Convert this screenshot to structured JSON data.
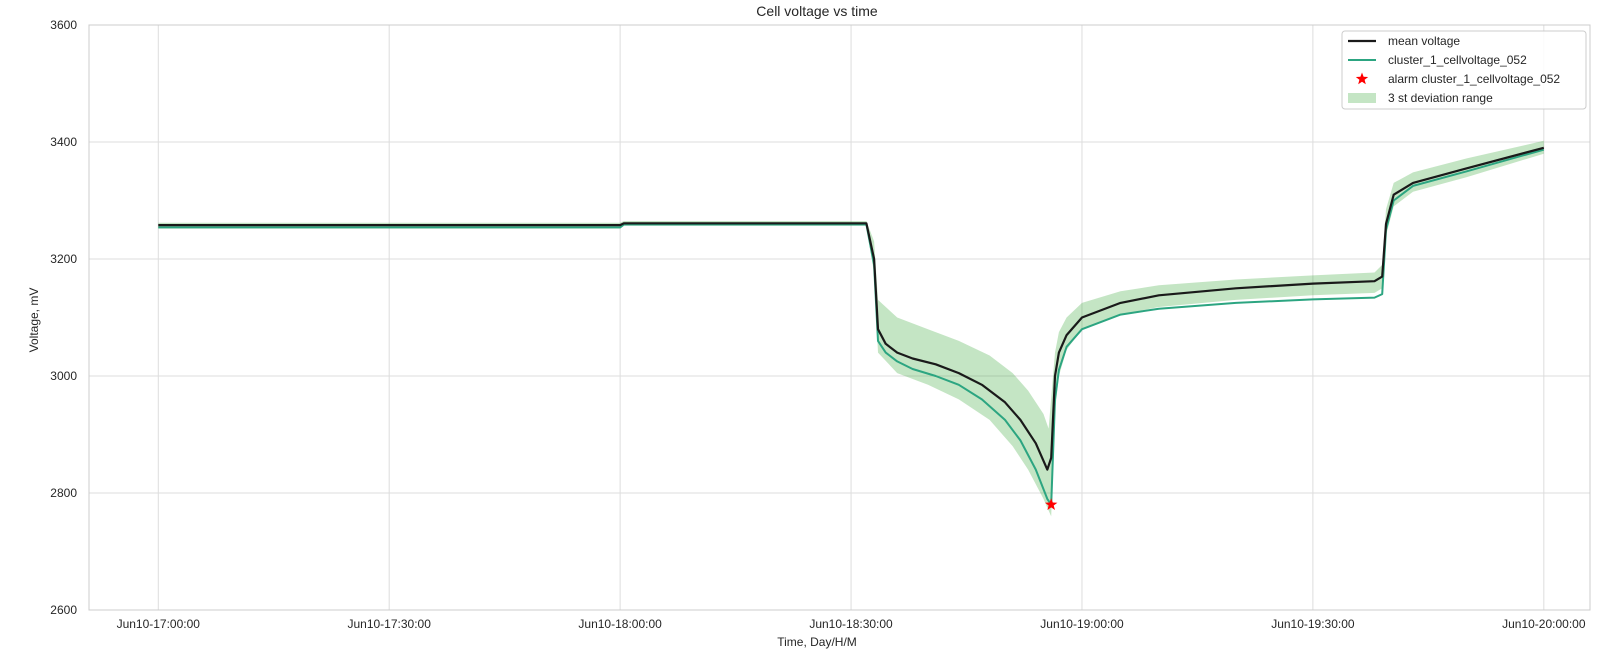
{
  "chart_data": {
    "type": "line",
    "title": "Cell voltage vs time",
    "xlabel": "Time, Day/H/M",
    "ylabel": "Voltage, mV",
    "ylim": [
      2600,
      3600
    ],
    "xlim": [
      "Jun10-16:51:00",
      "Jun10-20:06:00"
    ],
    "x_ticks": [
      "Jun10-17:00:00",
      "Jun10-17:30:00",
      "Jun10-18:00:00",
      "Jun10-18:30:00",
      "Jun10-19:00:00",
      "Jun10-19:30:00",
      "Jun10-20:00:00"
    ],
    "y_ticks": [
      2600,
      2800,
      3000,
      3200,
      3400,
      3600
    ],
    "grid": true,
    "legend_position": "top-right",
    "legend": [
      "mean voltage",
      "cluster_1_cellvoltage_052",
      "alarm cluster_1_cellvoltage_052",
      "3 st deviation range"
    ],
    "colors": {
      "mean": "#1a1a1a",
      "cell": "#2ca581",
      "alarm": "#ff0000",
      "band": "#2ca02c",
      "grid": "#dddddd",
      "axes_edge": "#cccccc"
    },
    "series": [
      {
        "name": "mean voltage",
        "points": [
          [
            "Jun10-17:00:00",
            3258
          ],
          [
            "Jun10-18:00:00",
            3258
          ],
          [
            "Jun10-18:00:30",
            3261
          ],
          [
            "Jun10-18:32:00",
            3261
          ],
          [
            "Jun10-18:33:00",
            3200
          ],
          [
            "Jun10-18:33:30",
            3080
          ],
          [
            "Jun10-18:34:30",
            3055
          ],
          [
            "Jun10-18:36:00",
            3040
          ],
          [
            "Jun10-18:38:00",
            3030
          ],
          [
            "Jun10-18:41:00",
            3020
          ],
          [
            "Jun10-18:44:00",
            3005
          ],
          [
            "Jun10-18:47:00",
            2985
          ],
          [
            "Jun10-18:50:00",
            2955
          ],
          [
            "Jun10-18:52:00",
            2925
          ],
          [
            "Jun10-18:54:00",
            2885
          ],
          [
            "Jun10-18:55:30",
            2840
          ],
          [
            "Jun10-18:56:00",
            2860
          ],
          [
            "Jun10-18:56:30",
            3000
          ],
          [
            "Jun10-18:57:00",
            3040
          ],
          [
            "Jun10-18:58:00",
            3070
          ],
          [
            "Jun10-19:00:00",
            3100
          ],
          [
            "Jun10-19:05:00",
            3125
          ],
          [
            "Jun10-19:10:00",
            3138
          ],
          [
            "Jun10-19:20:00",
            3150
          ],
          [
            "Jun10-19:30:00",
            3158
          ],
          [
            "Jun10-19:38:00",
            3162
          ],
          [
            "Jun10-19:39:00",
            3170
          ],
          [
            "Jun10-19:39:30",
            3260
          ],
          [
            "Jun10-19:40:30",
            3310
          ],
          [
            "Jun10-19:43:00",
            3330
          ],
          [
            "Jun10-19:50:00",
            3355
          ],
          [
            "Jun10-20:00:00",
            3390
          ]
        ]
      },
      {
        "name": "cluster_1_cellvoltage_052",
        "points": [
          [
            "Jun10-17:00:00",
            3254
          ],
          [
            "Jun10-18:00:00",
            3254
          ],
          [
            "Jun10-18:00:30",
            3259
          ],
          [
            "Jun10-18:32:00",
            3259
          ],
          [
            "Jun10-18:33:00",
            3190
          ],
          [
            "Jun10-18:33:30",
            3060
          ],
          [
            "Jun10-18:34:30",
            3040
          ],
          [
            "Jun10-18:36:00",
            3025
          ],
          [
            "Jun10-18:38:00",
            3012
          ],
          [
            "Jun10-18:41:00",
            3000
          ],
          [
            "Jun10-18:44:00",
            2985
          ],
          [
            "Jun10-18:47:00",
            2960
          ],
          [
            "Jun10-18:50:00",
            2925
          ],
          [
            "Jun10-18:52:00",
            2890
          ],
          [
            "Jun10-18:54:00",
            2840
          ],
          [
            "Jun10-18:55:30",
            2790
          ],
          [
            "Jun10-18:56:00",
            2780
          ],
          [
            "Jun10-18:56:30",
            2960
          ],
          [
            "Jun10-18:57:00",
            3010
          ],
          [
            "Jun10-18:58:00",
            3050
          ],
          [
            "Jun10-19:00:00",
            3080
          ],
          [
            "Jun10-19:05:00",
            3105
          ],
          [
            "Jun10-19:10:00",
            3115
          ],
          [
            "Jun10-19:20:00",
            3125
          ],
          [
            "Jun10-19:30:00",
            3131
          ],
          [
            "Jun10-19:38:00",
            3134
          ],
          [
            "Jun10-19:39:00",
            3140
          ],
          [
            "Jun10-19:39:30",
            3250
          ],
          [
            "Jun10-19:40:30",
            3300
          ],
          [
            "Jun10-19:43:00",
            3325
          ],
          [
            "Jun10-19:50:00",
            3350
          ],
          [
            "Jun10-20:00:00",
            3387
          ]
        ]
      }
    ],
    "band": {
      "name": "3 st deviation range",
      "upper": [
        [
          "Jun10-17:00:00",
          3262
        ],
        [
          "Jun10-18:00:00",
          3262
        ],
        [
          "Jun10-18:00:30",
          3265
        ],
        [
          "Jun10-18:32:00",
          3265
        ],
        [
          "Jun10-18:33:00",
          3230
        ],
        [
          "Jun10-18:33:30",
          3130
        ],
        [
          "Jun10-18:36:00",
          3100
        ],
        [
          "Jun10-18:40:00",
          3080
        ],
        [
          "Jun10-18:44:00",
          3060
        ],
        [
          "Jun10-18:48:00",
          3035
        ],
        [
          "Jun10-18:51:00",
          3005
        ],
        [
          "Jun10-18:53:00",
          2975
        ],
        [
          "Jun10-18:55:00",
          2935
        ],
        [
          "Jun10-18:55:40",
          2910
        ],
        [
          "Jun10-18:56:30",
          3040
        ],
        [
          "Jun10-18:57:00",
          3075
        ],
        [
          "Jun10-18:58:00",
          3100
        ],
        [
          "Jun10-19:00:00",
          3125
        ],
        [
          "Jun10-19:05:00",
          3145
        ],
        [
          "Jun10-19:10:00",
          3155
        ],
        [
          "Jun10-19:20:00",
          3165
        ],
        [
          "Jun10-19:30:00",
          3172
        ],
        [
          "Jun10-19:38:00",
          3177
        ],
        [
          "Jun10-19:39:00",
          3190
        ],
        [
          "Jun10-19:39:30",
          3285
        ],
        [
          "Jun10-19:40:30",
          3330
        ],
        [
          "Jun10-19:43:00",
          3348
        ],
        [
          "Jun10-19:50:00",
          3372
        ],
        [
          "Jun10-20:00:00",
          3402
        ]
      ],
      "lower": [
        [
          "Jun10-17:00:00",
          3252
        ],
        [
          "Jun10-18:00:00",
          3252
        ],
        [
          "Jun10-18:00:30",
          3257
        ],
        [
          "Jun10-18:32:00",
          3257
        ],
        [
          "Jun10-18:33:00",
          3175
        ],
        [
          "Jun10-18:33:30",
          3040
        ],
        [
          "Jun10-18:36:00",
          3005
        ],
        [
          "Jun10-18:40:00",
          2985
        ],
        [
          "Jun10-18:44:00",
          2960
        ],
        [
          "Jun10-18:48:00",
          2925
        ],
        [
          "Jun10-18:51:00",
          2880
        ],
        [
          "Jun10-18:53:00",
          2840
        ],
        [
          "Jun10-18:55:00",
          2790
        ],
        [
          "Jun10-18:56:00",
          2760
        ],
        [
          "Jun10-18:56:30",
          2940
        ],
        [
          "Jun10-18:57:00",
          3000
        ],
        [
          "Jun10-18:58:00",
          3045
        ],
        [
          "Jun10-19:00:00",
          3080
        ],
        [
          "Jun10-19:05:00",
          3105
        ],
        [
          "Jun10-19:10:00",
          3118
        ],
        [
          "Jun10-19:20:00",
          3130
        ],
        [
          "Jun10-19:30:00",
          3138
        ],
        [
          "Jun10-19:38:00",
          3142
        ],
        [
          "Jun10-19:39:00",
          3150
        ],
        [
          "Jun10-19:39:30",
          3240
        ],
        [
          "Jun10-19:40:30",
          3290
        ],
        [
          "Jun10-19:43:00",
          3315
        ],
        [
          "Jun10-19:50:00",
          3340
        ],
        [
          "Jun10-20:00:00",
          3380
        ]
      ]
    },
    "alarm_points": [
      [
        "Jun10-18:56:00",
        2780
      ]
    ]
  }
}
